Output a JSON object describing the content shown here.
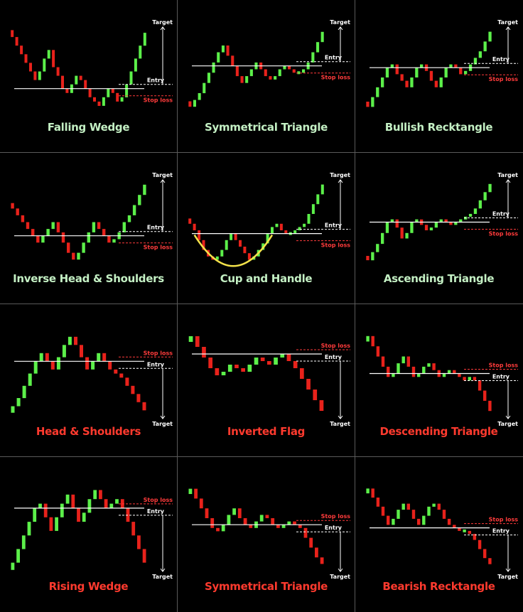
{
  "colors": {
    "bull": "#5cf04a",
    "bear": "#e8221b",
    "line": "#ffffff",
    "stop": "#ff3b3b",
    "cup": "#f3e24a",
    "background": "#000000"
  },
  "labels": {
    "target": "Target",
    "entry": "Entry",
    "stop_loss": "Stop loss"
  },
  "chart_data": [
    {
      "type": "candlestick",
      "title": "Falling Wedge",
      "direction": "bullish",
      "closes": [
        18,
        16,
        14,
        12,
        10,
        8,
        10,
        13,
        15,
        11,
        9,
        6,
        5,
        7,
        9,
        8,
        6,
        4,
        3,
        2,
        4,
        6,
        5,
        3,
        4,
        7,
        10,
        13,
        16,
        19
      ]
    },
    {
      "type": "candlestick",
      "title": "Symmetrical Triangle",
      "direction": "bullish",
      "closes": [
        2,
        4,
        6,
        9,
        12,
        15,
        18,
        20,
        17,
        14,
        11,
        9,
        11,
        13,
        15,
        13,
        11,
        10,
        11,
        13,
        14,
        13,
        12,
        12,
        13,
        15,
        18,
        21,
        24
      ]
    },
    {
      "type": "candlestick",
      "title": "Bullish Recktangle",
      "direction": "bullish",
      "closes": [
        2,
        5,
        8,
        11,
        14,
        15,
        12,
        10,
        8,
        11,
        14,
        15,
        13,
        10,
        8,
        11,
        14,
        15,
        14,
        12,
        13,
        15,
        17,
        19,
        22,
        25
      ]
    },
    {
      "type": "candlestick",
      "title": "Inverse Head & Shoulders",
      "direction": "bullish",
      "closes": [
        20,
        18,
        16,
        14,
        12,
        10,
        12,
        14,
        16,
        13,
        10,
        7,
        5,
        7,
        10,
        13,
        16,
        14,
        12,
        10,
        11,
        13,
        16,
        18,
        21,
        24,
        27
      ]
    },
    {
      "type": "candlestick",
      "title": "Cup and Handle",
      "direction": "bullish",
      "closes": [
        16,
        14,
        11,
        8,
        6,
        5,
        6,
        8,
        11,
        13,
        11,
        9,
        7,
        5,
        6,
        8,
        10,
        13,
        15,
        16,
        14,
        13,
        13,
        14,
        15,
        16,
        19,
        22,
        25,
        28
      ]
    },
    {
      "type": "candlestick",
      "title": "Ascending Triangle",
      "direction": "bullish",
      "closes": [
        2,
        5,
        8,
        12,
        16,
        17,
        14,
        10,
        12,
        16,
        17,
        15,
        13,
        14,
        16,
        17,
        16,
        15,
        16,
        17,
        18,
        19,
        21,
        24,
        27,
        30
      ]
    },
    {
      "type": "candlestick",
      "title": "Head & Shoulders",
      "direction": "bearish",
      "closes": [
        3,
        5,
        8,
        11,
        14,
        16,
        14,
        12,
        15,
        18,
        20,
        18,
        15,
        12,
        14,
        16,
        14,
        12,
        11,
        10,
        8,
        6,
        4,
        2
      ]
    },
    {
      "type": "candlestick",
      "title": "Inverted Flag",
      "direction": "bearish",
      "closes": [
        22,
        19,
        16,
        13,
        11,
        12,
        14,
        13,
        12,
        14,
        16,
        15,
        14,
        16,
        17,
        15,
        13,
        10,
        7,
        4,
        1
      ]
    },
    {
      "type": "candlestick",
      "title": "Descending Triangle",
      "direction": "bearish",
      "closes": [
        24,
        21,
        18,
        15,
        12,
        13,
        16,
        18,
        15,
        12,
        13,
        15,
        16,
        14,
        12,
        13,
        14,
        13,
        12,
        11,
        12,
        11,
        8,
        5,
        2
      ]
    },
    {
      "type": "candlestick",
      "title": "Rising Wedge",
      "direction": "bearish",
      "closes": [
        2,
        5,
        8,
        11,
        14,
        15,
        12,
        9,
        12,
        15,
        17,
        14,
        11,
        13,
        16,
        18,
        16,
        14,
        15,
        16,
        14,
        11,
        8,
        5,
        2
      ]
    },
    {
      "type": "candlestick",
      "title": "Symmetrical Triangle",
      "direction": "bearish",
      "closes": [
        24,
        21,
        18,
        15,
        12,
        11,
        13,
        16,
        18,
        15,
        13,
        12,
        14,
        16,
        15,
        13,
        12,
        13,
        14,
        13,
        12,
        9,
        6,
        3,
        1
      ]
    },
    {
      "type": "candlestick",
      "title": "Bearish Recktangle",
      "direction": "bearish",
      "closes": [
        26,
        23,
        20,
        17,
        14,
        16,
        19,
        21,
        19,
        16,
        14,
        17,
        20,
        21,
        19,
        16,
        14,
        13,
        12,
        12,
        11,
        9,
        6,
        3,
        1
      ]
    }
  ]
}
